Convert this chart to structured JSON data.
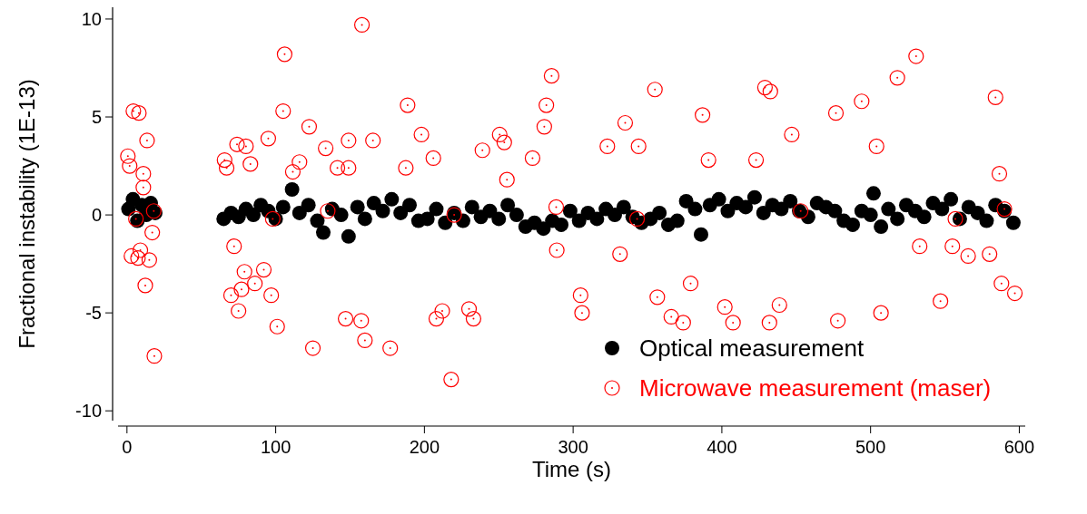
{
  "chart_data": {
    "type": "scatter",
    "xlabel": "Time (s)",
    "ylabel": "Fractional instability (1E-13)",
    "xlim": [
      -6,
      604
    ],
    "ylim": [
      -10.5,
      10.6
    ],
    "xticks": [
      0,
      100,
      200,
      300,
      400,
      500,
      600
    ],
    "yticks": [
      -10,
      -5,
      0,
      5,
      10
    ],
    "grid": false,
    "legend": "bottom right",
    "marker": "circle",
    "series": [
      {
        "name": "Optical measurement",
        "color": "#000000",
        "x": [
          1,
          4,
          7,
          10,
          13,
          16,
          19,
          65,
          70,
          75,
          80,
          85,
          90,
          95,
          100,
          105,
          111,
          116,
          122,
          128,
          132,
          138,
          144,
          149,
          155,
          160,
          166,
          172,
          178,
          184,
          190,
          196,
          202,
          208,
          214,
          220,
          226,
          232,
          238,
          244,
          250,
          256,
          262,
          268,
          274,
          280,
          286,
          292,
          298,
          304,
          310,
          316,
          322,
          328,
          334,
          340,
          346,
          352,
          358,
          364,
          370,
          376,
          382,
          386,
          392,
          398,
          404,
          410,
          416,
          422,
          428,
          434,
          440,
          446,
          452,
          458,
          464,
          470,
          476,
          482,
          488,
          494,
          500,
          502,
          507,
          512,
          518,
          524,
          530,
          536,
          542,
          548,
          554,
          560,
          566,
          572,
          578,
          584,
          590,
          596
        ],
        "values": [
          0.3,
          0.8,
          -0.3,
          0.5,
          0.0,
          0.6,
          0.1,
          -0.2,
          0.1,
          -0.1,
          0.3,
          0.0,
          0.5,
          0.2,
          -0.2,
          0.4,
          1.3,
          0.1,
          0.5,
          -0.3,
          -0.9,
          0.3,
          0.0,
          -1.1,
          0.4,
          -0.2,
          0.6,
          0.2,
          0.8,
          0.1,
          0.5,
          -0.3,
          -0.2,
          0.3,
          -0.4,
          0.1,
          -0.3,
          0.4,
          -0.1,
          0.2,
          -0.2,
          0.5,
          0.0,
          -0.6,
          -0.4,
          -0.7,
          -0.3,
          -0.5,
          0.2,
          -0.3,
          0.1,
          -0.2,
          0.3,
          0.0,
          0.4,
          -0.1,
          -0.4,
          -0.2,
          0.1,
          -0.5,
          -0.3,
          0.7,
          0.3,
          -1.0,
          0.5,
          0.8,
          0.2,
          0.6,
          0.4,
          0.9,
          0.1,
          0.5,
          0.3,
          0.7,
          0.2,
          -0.1,
          0.6,
          0.4,
          0.2,
          -0.3,
          -0.5,
          0.2,
          0.0,
          1.1,
          -0.6,
          0.3,
          -0.2,
          0.5,
          0.2,
          -0.1,
          0.6,
          0.3,
          0.8,
          -0.2,
          0.4,
          0.1,
          -0.3,
          0.5,
          0.2,
          -0.4
        ]
      },
      {
        "name": "Microwave measurement (maser)",
        "color": "#ff0000",
        "x": [
          0.6,
          1.8,
          4.3,
          8,
          11,
          13.5,
          11,
          3,
          7.4,
          9,
          12.3,
          17,
          15,
          18.4,
          6,
          65.6,
          67,
          74,
          80,
          83,
          95,
          105,
          106,
          101,
          97,
          70,
          75,
          77,
          79,
          72,
          86,
          92,
          111.5,
          116,
          122.5,
          125,
          133.6,
          141.5,
          149,
          149,
          158,
          147,
          157.5,
          160,
          165.4,
          177,
          188.7,
          187.5,
          198,
          206,
          208,
          212,
          218,
          230,
          233,
          239,
          250.6,
          253.7,
          255.5,
          272.7,
          282,
          285.5,
          280.6,
          288.6,
          289,
          305,
          306,
          323,
          331.5,
          335,
          344,
          355,
          356.6,
          366,
          374,
          387,
          379,
          391,
          402,
          407.5,
          423,
          429,
          432.6,
          432,
          438.7,
          447,
          476.7,
          478,
          494,
          504,
          507,
          518,
          530.6,
          533,
          547,
          555,
          565.6,
          584,
          586.6,
          588,
          597,
          580,
          590,
          18,
          98,
          135,
          220,
          343,
          453,
          557
        ],
        "values": [
          3.0,
          2.5,
          5.3,
          5.2,
          2.1,
          3.8,
          1.4,
          -2.1,
          -2.2,
          -1.8,
          -3.6,
          -0.9,
          -2.3,
          -7.2,
          -0.2,
          2.8,
          2.4,
          3.6,
          3.5,
          2.6,
          3.9,
          5.3,
          8.2,
          -5.7,
          -4.1,
          -4.1,
          -4.9,
          -3.8,
          -2.9,
          -1.6,
          -3.5,
          -2.8,
          2.2,
          2.7,
          4.5,
          -6.8,
          3.4,
          2.4,
          3.8,
          2.4,
          9.7,
          -5.3,
          -5.4,
          -6.4,
          3.8,
          -6.8,
          5.6,
          2.4,
          4.1,
          2.9,
          -5.3,
          -4.9,
          -8.4,
          -4.8,
          -5.3,
          3.3,
          4.1,
          3.7,
          1.8,
          2.9,
          5.6,
          7.1,
          4.5,
          0.4,
          -1.8,
          -4.1,
          -5.0,
          3.5,
          -2.0,
          4.7,
          3.5,
          6.4,
          -4.2,
          -5.2,
          -5.5,
          5.1,
          -3.5,
          2.8,
          -4.7,
          -5.5,
          2.8,
          6.5,
          6.3,
          -5.5,
          -4.6,
          4.1,
          5.2,
          -5.4,
          5.8,
          3.5,
          -5.0,
          7.0,
          8.1,
          -1.6,
          -4.4,
          -1.6,
          -2.1,
          6.0,
          2.1,
          -3.5,
          -4.0,
          -2.0,
          0.3,
          0.2,
          -0.2,
          0.2,
          0.0,
          -0.2,
          0.2,
          -0.2
        ]
      }
    ]
  }
}
